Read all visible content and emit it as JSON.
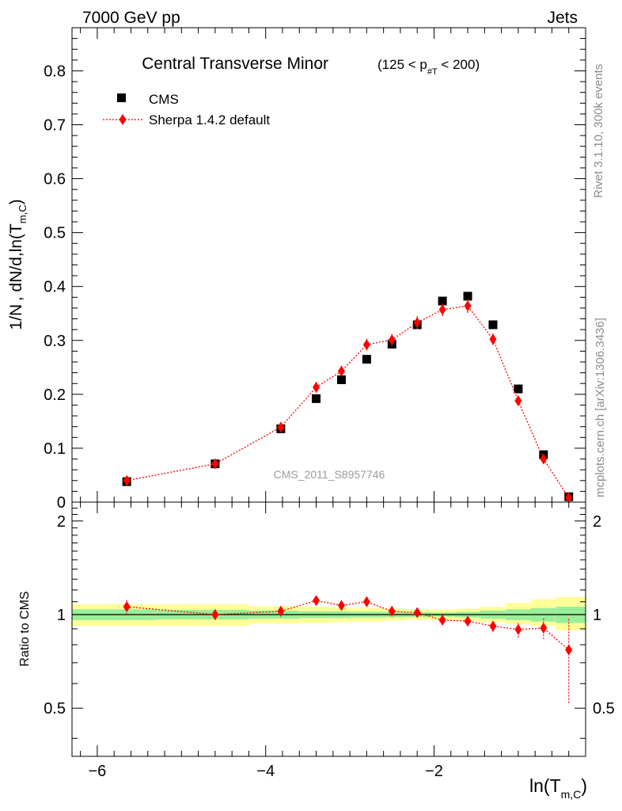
{
  "header": {
    "left": "7000 GeV pp",
    "right": "Jets"
  },
  "side_labels": {
    "rivet": "Rivet 3.1.10,  300k events",
    "mcplots": "mcplots.cern.ch [arXiv:1306.3436]"
  },
  "watermark": "CMS_2011_S8957746",
  "chart_data": [
    {
      "type": "scatter",
      "title": "Central Transverse Minor",
      "title_cut": {
        "prefix": "(125 < p",
        "sub": "#T",
        "suffix": "  < 200)"
      },
      "xlabel": {
        "main": "ln(T",
        "sub": "m,C",
        "close": ")"
      },
      "ylabel": {
        "main": "1/N",
        "mid": " , dN/d,ln(T",
        "sub": "m,C",
        "close": ")"
      },
      "xlim": [
        -6.3,
        -0.2
      ],
      "ylim": [
        0,
        0.88
      ],
      "x_ticks": [
        -6,
        -4,
        -2
      ],
      "x_tick_labels": [
        "−6",
        "−4",
        "−2"
      ],
      "y_ticks": [
        0,
        0.1,
        0.2,
        0.3,
        0.4,
        0.5,
        0.6,
        0.7,
        0.8
      ],
      "y_tick_labels": [
        "0",
        "0.1",
        "0.2",
        "0.3",
        "0.4",
        "0.5",
        "0.6",
        "0.7",
        "0.8"
      ],
      "legend_position": "top-left",
      "series": [
        {
          "name": "CMS",
          "style": "square-marker",
          "color": "#000000",
          "x": [
            -5.65,
            -4.6,
            -3.82,
            -3.4,
            -3.1,
            -2.8,
            -2.5,
            -2.2,
            -1.9,
            -1.6,
            -1.3,
            -1.0,
            -0.7,
            -0.4
          ],
          "y": [
            0.038,
            0.071,
            0.136,
            0.192,
            0.227,
            0.265,
            0.293,
            0.329,
            0.373,
            0.382,
            0.329,
            0.21,
            0.088,
            0.01
          ]
        },
        {
          "name": "Sherpa 1.4.2 default",
          "style": "diamond-dotted-line",
          "color": "#ff0000",
          "x": [
            -5.65,
            -4.6,
            -3.82,
            -3.4,
            -3.1,
            -2.8,
            -2.5,
            -2.2,
            -1.9,
            -1.6,
            -1.3,
            -1.0,
            -0.7,
            -0.4
          ],
          "y": [
            0.04,
            0.071,
            0.139,
            0.213,
            0.243,
            0.292,
            0.301,
            0.333,
            0.357,
            0.364,
            0.302,
            0.188,
            0.08,
            0.008
          ],
          "yerr": [
            0.003,
            0.004,
            0.006,
            0.01,
            0.01,
            0.011,
            0.011,
            0.012,
            0.012,
            0.013,
            0.011,
            0.009,
            0.006,
            0.003
          ]
        }
      ]
    },
    {
      "type": "scatter",
      "ylabel": "Ratio to CMS",
      "xlim": [
        -6.3,
        -0.2
      ],
      "ylim": [
        0.35,
        2.3
      ],
      "y_scale": "log",
      "y_ticks": [
        0.5,
        1,
        2
      ],
      "y_tick_labels": [
        "0.5",
        "1",
        "2"
      ],
      "reference_line": 1,
      "bands": {
        "x_edges": [
          -6.3,
          -5.3,
          -4.2,
          -3.6,
          -3.2,
          -3.0,
          -2.6,
          -2.35,
          -2.05,
          -1.75,
          -1.45,
          -1.15,
          -0.85,
          -0.55,
          -0.2
        ],
        "inner_lo": [
          0.96,
          0.965,
          0.97,
          0.975,
          0.975,
          0.978,
          0.98,
          0.982,
          0.985,
          0.98,
          0.97,
          0.96,
          0.95,
          0.94
        ],
        "inner_hi": [
          1.04,
          1.035,
          1.03,
          1.025,
          1.025,
          1.022,
          1.02,
          1.018,
          1.015,
          1.02,
          1.03,
          1.04,
          1.05,
          1.06
        ],
        "outer_lo": [
          0.92,
          0.92,
          0.935,
          0.94,
          0.945,
          0.95,
          0.955,
          0.96,
          0.96,
          0.955,
          0.945,
          0.93,
          0.92,
          0.89
        ],
        "outer_hi": [
          1.08,
          1.08,
          1.065,
          1.06,
          1.055,
          1.05,
          1.045,
          1.04,
          1.04,
          1.045,
          1.06,
          1.09,
          1.12,
          1.14
        ],
        "inner_color": "#99ee99",
        "outer_color": "#ffff99"
      },
      "series": [
        {
          "name": "Sherpa 1.4.2 default",
          "color": "#ff0000",
          "x": [
            -5.65,
            -4.6,
            -3.82,
            -3.4,
            -3.1,
            -2.8,
            -2.5,
            -2.2,
            -1.9,
            -1.6,
            -1.3,
            -1.0,
            -0.7,
            -0.4
          ],
          "y": [
            1.06,
            1.0,
            1.025,
            1.11,
            1.07,
            1.1,
            1.025,
            1.015,
            0.96,
            0.953,
            0.918,
            0.895,
            0.905,
            0.77
          ],
          "yerr_lo": [
            0.06,
            0.04,
            0.04,
            0.04,
            0.04,
            0.04,
            0.035,
            0.035,
            0.035,
            0.035,
            0.04,
            0.05,
            0.07,
            0.25
          ],
          "yerr_hi": [
            0.06,
            0.04,
            0.04,
            0.04,
            0.04,
            0.04,
            0.035,
            0.035,
            0.035,
            0.035,
            0.04,
            0.05,
            0.07,
            0.2
          ]
        }
      ]
    }
  ]
}
